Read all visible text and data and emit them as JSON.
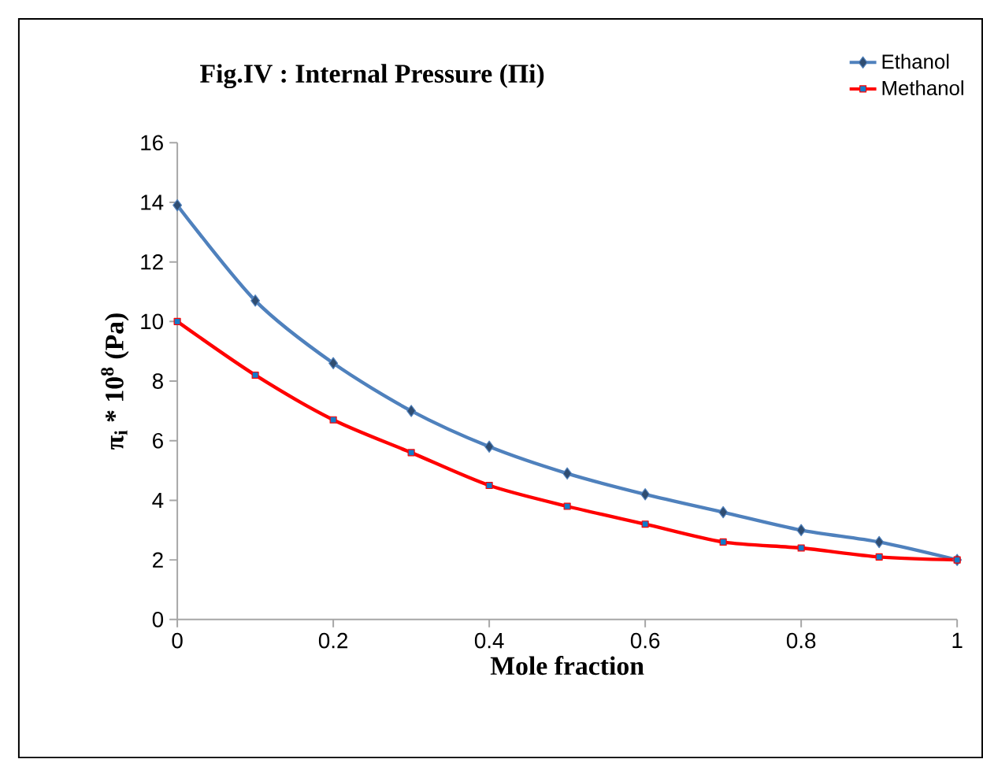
{
  "chart_data": {
    "type": "line",
    "title": "Fig.IV : Internal Pressure (Πi)",
    "xlabel": "Mole fraction",
    "ylabel": "π$_{i}$ * 10$^{8}$ (Pa)",
    "x": [
      0,
      0.1,
      0.2,
      0.3,
      0.4,
      0.5,
      0.6,
      0.7,
      0.8,
      0.9,
      1
    ],
    "series": [
      {
        "name": "Ethanol",
        "color": "#4f81bd",
        "marker": "diamond",
        "values": [
          13.9,
          10.7,
          8.6,
          7.0,
          5.8,
          4.9,
          4.2,
          3.6,
          3.0,
          2.6,
          2.0
        ]
      },
      {
        "name": "Methanol",
        "color": "#ff0000",
        "marker": "square",
        "values": [
          10.0,
          8.2,
          6.7,
          5.6,
          4.5,
          3.8,
          3.2,
          2.6,
          2.4,
          2.1,
          2.0
        ]
      }
    ],
    "xlim": [
      0,
      1
    ],
    "xticks": [
      0,
      0.2,
      0.4,
      0.6,
      0.8,
      1
    ],
    "ylim": [
      0,
      16
    ],
    "yticks": [
      0,
      2,
      4,
      6,
      8,
      10,
      12,
      14,
      16
    ],
    "grid": false,
    "legend": "top right",
    "line_style": "solid"
  }
}
